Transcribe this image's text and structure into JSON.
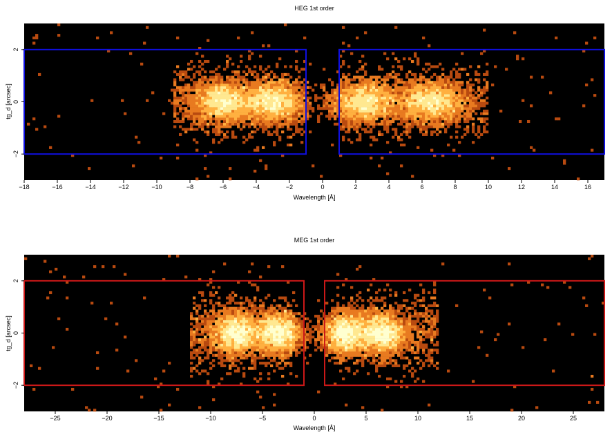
{
  "chart_data": [
    {
      "type": "heatmap",
      "title": "HEG 1st order",
      "xlabel": "Wavelength [Å]",
      "ylabel": "tg_d [arcsec]",
      "xlim": [
        -18,
        17
      ],
      "ylim": [
        -3,
        3
      ],
      "xticks": [
        -18,
        -16,
        -14,
        -12,
        -10,
        -8,
        -6,
        -4,
        -2,
        0,
        2,
        4,
        6,
        8,
        10,
        12,
        14,
        16
      ],
      "yticks": [
        -2,
        0,
        2
      ],
      "region_color": "#1010e0",
      "regions": [
        {
          "x": [
            -18,
            -1
          ],
          "y": [
            -2,
            2
          ]
        },
        {
          "x": [
            1,
            17
          ],
          "y": [
            -2,
            2
          ]
        }
      ],
      "clusters": [
        {
          "x_range": [
            -9,
            -1
          ],
          "peaks": [
            -6,
            -3
          ],
          "density": "high"
        },
        {
          "x_range": [
            1,
            10
          ],
          "peaks": [
            2.5,
            6.5
          ],
          "density": "high"
        }
      ],
      "colormap": [
        "#000000",
        "#b84a10",
        "#e87a20",
        "#ffb040",
        "#ffe890",
        "#ffffd0"
      ]
    },
    {
      "type": "heatmap",
      "title": "MEG 1st order",
      "xlabel": "Wavelength [Å]",
      "ylabel": "tg_d [arcsec]",
      "xlim": [
        -28,
        28
      ],
      "ylim": [
        -3,
        3
      ],
      "xticks": [
        -25,
        -20,
        -15,
        -10,
        -5,
        0,
        5,
        10,
        15,
        20,
        25
      ],
      "yticks": [
        -2,
        0,
        2
      ],
      "region_color": "#cc1818",
      "regions": [
        {
          "x": [
            -28,
            -1
          ],
          "y": [
            -2,
            2
          ]
        },
        {
          "x": [
            1,
            28
          ],
          "y": [
            -2,
            2
          ]
        }
      ],
      "clusters": [
        {
          "x_range": [
            -12,
            -2
          ],
          "peaks": [
            -7.5,
            -3.5
          ],
          "density": "high"
        },
        {
          "x_range": [
            2,
            12
          ],
          "peaks": [
            3,
            6.5
          ],
          "density": "high"
        }
      ],
      "colormap": [
        "#000000",
        "#b84a10",
        "#e87a20",
        "#ffb040",
        "#ffe890",
        "#ffffd0"
      ]
    }
  ]
}
